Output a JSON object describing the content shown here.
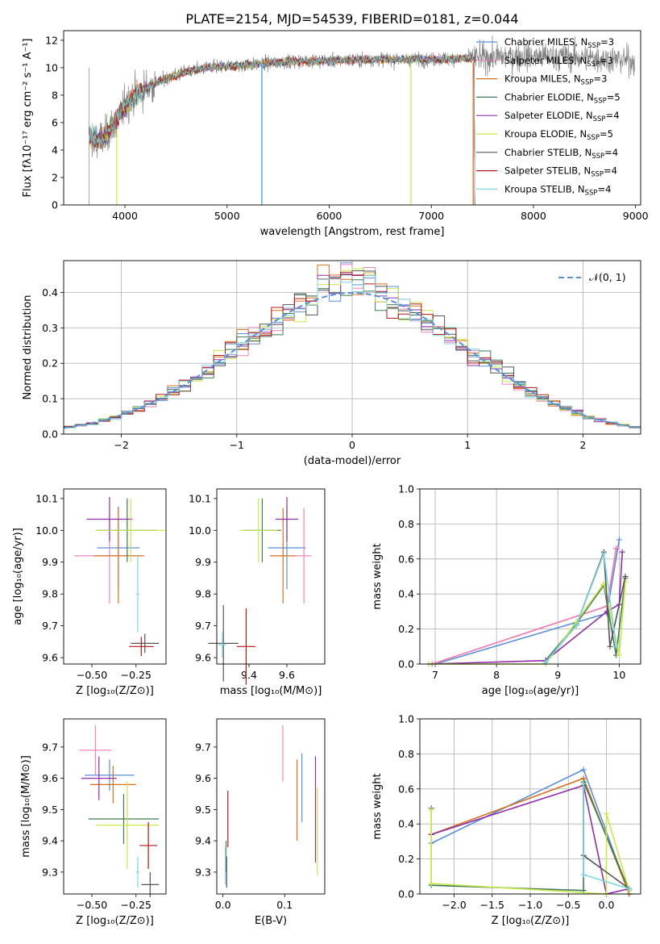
{
  "figure_title": "PLATE=2154, MJD=54539, FIBERID=0181, z=0.044",
  "colors": {
    "chabrier_miles": "#5b8ed6",
    "salpeter_miles": "#f082c0",
    "kroupa_miles": "#d6701e",
    "chabrier_elodie": "#3f7a55",
    "salpeter_elodie": "#8f2fa8",
    "kroupa_elodie": "#c8e84a",
    "chabrier_stelib": "#555555",
    "salpeter_stelib": "#b01818",
    "kroupa_stelib": "#7fd6dc",
    "data_gray": "#808080",
    "normal": "#5b8ed6"
  },
  "chart_data": [
    {
      "id": "spectrum",
      "type": "line",
      "xlabel": "wavelength [Angstrom, rest frame]",
      "ylabel": "Flux [fλ10⁻¹⁷ erg cm⁻² s⁻¹ A⁻¹]",
      "xlim": [
        3400,
        9050
      ],
      "ylim": [
        0,
        12.7
      ],
      "xticks": [
        4000,
        5000,
        6000,
        7000,
        8000,
        9000
      ],
      "yticks": [
        0,
        2,
        4,
        6,
        8,
        10,
        12
      ],
      "grid": false,
      "legend_placement": "top-right",
      "legend": [
        {
          "label": "Chabrier MILES, N",
          "sub": "SSP",
          "suffix": "=3",
          "color": "#5b8ed6"
        },
        {
          "label": "Salpeter MILES, N",
          "sub": "SSP",
          "suffix": "=3",
          "color": "#f082c0"
        },
        {
          "label": "Kroupa MILES, N",
          "sub": "SSP",
          "suffix": "=3",
          "color": "#d6701e"
        },
        {
          "label": "Chabrier ELODIE, N",
          "sub": "SSP",
          "suffix": "=5",
          "color": "#3f7a55"
        },
        {
          "label": "Salpeter ELODIE, N",
          "sub": "SSP",
          "suffix": "=4",
          "color": "#8f2fa8"
        },
        {
          "label": "Kroupa ELODIE, N",
          "sub": "SSP",
          "suffix": "=5",
          "color": "#c8e84a"
        },
        {
          "label": "Chabrier STELIB, N",
          "sub": "SSP",
          "suffix": "=4",
          "color": "#555555"
        },
        {
          "label": "Salpeter STELIB, N",
          "sub": "SSP",
          "suffix": "=4",
          "color": "#b01818"
        },
        {
          "label": "Kroupa STELIB, N",
          "sub": "SSP",
          "suffix": "=4",
          "color": "#7fd6dc"
        }
      ],
      "continuum": {
        "x": [
          3650,
          3700,
          3800,
          3900,
          4000,
          4100,
          4200,
          4400,
          4600,
          4800,
          5000,
          5200,
          5500,
          5800,
          6000,
          6300,
          6600,
          7000,
          7400,
          7800,
          8200,
          8600,
          9000
        ],
        "y": [
          5.0,
          4.7,
          4.9,
          6.0,
          7.2,
          8.0,
          8.5,
          9.2,
          9.7,
          10.0,
          10.1,
          10.2,
          10.4,
          10.5,
          10.5,
          10.6,
          10.6,
          10.6,
          10.7,
          10.8,
          10.8,
          10.7,
          10.5
        ]
      },
      "model_range": [
        3650,
        7420
      ],
      "data_range": [
        3650,
        8990
      ]
    },
    {
      "id": "residuals",
      "type": "step",
      "xlabel": "(data-model)/error",
      "ylabel": "Normed distribution",
      "xlim": [
        -2.5,
        2.5
      ],
      "ylim": [
        0,
        0.49
      ],
      "xticks": [
        -2,
        -1,
        0,
        1,
        2
      ],
      "yticks": [
        0.0,
        0.1,
        0.2,
        0.3,
        0.4
      ],
      "grid": true,
      "legend_placement": "top-right",
      "legend": [
        {
          "label": "𝒩(0, 1)",
          "color": "#5b8ed6",
          "style": "dashed"
        }
      ],
      "bin_width": 0.1
    },
    {
      "id": "age-vs-Z",
      "type": "errorbar",
      "xlabel": "Z [log₁₀(Z/Z⊙)]",
      "ylabel": "age  [log₁₀(age/yr)]",
      "xlim": [
        -0.66,
        -0.08
      ],
      "ylim": [
        9.58,
        10.13
      ],
      "xticks": [
        -0.5,
        -0.25
      ],
      "yticks": [
        9.6,
        9.7,
        9.8,
        9.9,
        10.0,
        10.1
      ],
      "points": [
        {
          "color": "#5b8ed6",
          "x": -0.35,
          "xerr": 0.12,
          "y": 9.945,
          "yerr": 0.13
        },
        {
          "color": "#f082c0",
          "x": -0.4,
          "xerr": 0.2,
          "y": 9.92,
          "yerr": 0.15
        },
        {
          "color": "#d6701e",
          "x": -0.35,
          "xerr": 0.14,
          "y": 9.92,
          "yerr": 0.15
        },
        {
          "color": "#3f7a55",
          "x": -0.3,
          "xerr": 0.17,
          "y": 10.0,
          "yerr": 0.1
        },
        {
          "color": "#8f2fa8",
          "x": -0.4,
          "xerr": 0.13,
          "y": 10.035,
          "yerr": 0.07
        },
        {
          "color": "#c8e84a",
          "x": -0.28,
          "xerr": 0.2,
          "y": 10.0,
          "yerr": 0.1
        },
        {
          "color": "#555555",
          "x": -0.2,
          "xerr": 0.08,
          "y": 9.645,
          "yerr": 0.03
        },
        {
          "color": "#b01818",
          "x": -0.22,
          "xerr": 0.07,
          "y": 9.635,
          "yerr": 0.03
        },
        {
          "color": "#7fd6dc",
          "x": -0.24,
          "xerr": 0.01,
          "y": 9.8,
          "yerr": 0.12
        }
      ]
    },
    {
      "id": "age-vs-mass",
      "type": "errorbar",
      "xlabel": "mass [log₁₀(M/M⊙)]",
      "ylabel": "",
      "xlim": [
        9.23,
        9.8
      ],
      "ylim": [
        9.58,
        10.13
      ],
      "xticks": [
        9.4,
        9.6
      ],
      "yticks": [
        9.6,
        9.7,
        9.8,
        9.9,
        10.0,
        10.1
      ],
      "points": [
        {
          "color": "#5b8ed6",
          "x": 9.6,
          "xerr": 0.1,
          "y": 9.945,
          "yerr": 0.13
        },
        {
          "color": "#f082c0",
          "x": 9.69,
          "xerr": 0.04,
          "y": 9.92,
          "yerr": 0.15
        },
        {
          "color": "#d6701e",
          "x": 9.58,
          "xerr": 0.07,
          "y": 9.92,
          "yerr": 0.15
        },
        {
          "color": "#3f7a55",
          "x": 9.47,
          "xerr": 0.1,
          "y": 10.0,
          "yerr": 0.1
        },
        {
          "color": "#8f2fa8",
          "x": 9.6,
          "xerr": 0.06,
          "y": 10.035,
          "yerr": 0.07
        },
        {
          "color": "#c8e84a",
          "x": 9.45,
          "xerr": 0.1,
          "y": 10.0,
          "yerr": 0.1
        },
        {
          "color": "#555555",
          "x": 9.265,
          "xerr": 0.08,
          "y": 9.645,
          "yerr": 0.12
        },
        {
          "color": "#b01818",
          "x": 9.385,
          "xerr": 0.05,
          "y": 9.635,
          "yerr": 0.12
        },
        {
          "color": "#7fd6dc",
          "x": 9.26,
          "xerr": 0.02,
          "y": 9.64,
          "yerr": 0.04
        }
      ]
    },
    {
      "id": "mass-weight-vs-age",
      "type": "line",
      "xlabel": "age  [log₁₀(age/yr)]",
      "ylabel": "mass weight",
      "xlim": [
        6.75,
        10.35
      ],
      "ylim": [
        0,
        1
      ],
      "xticks": [
        7,
        8,
        9,
        10
      ],
      "yticks": [
        0.0,
        0.2,
        0.4,
        0.6,
        0.8,
        1.0
      ],
      "grid": true,
      "series": [
        {
          "color": "#5b8ed6",
          "x": [
            7.0,
            9.8,
            10.0
          ],
          "y": [
            0.0,
            0.29,
            0.71
          ]
        },
        {
          "color": "#d6701e",
          "x": [
            6.95,
            9.8,
            9.95
          ],
          "y": [
            0.0,
            0.33,
            0.66
          ]
        },
        {
          "color": "#f082c0",
          "x": [
            6.95,
            9.8,
            9.95
          ],
          "y": [
            0.0,
            0.33,
            0.66
          ]
        },
        {
          "color": "#3f7a55",
          "x": [
            8.8,
            9.3,
            9.75,
            9.95,
            10.1
          ],
          "y": [
            0.02,
            0.23,
            0.45,
            0.05,
            0.49
          ]
        },
        {
          "color": "#8f2fa8",
          "x": [
            6.9,
            8.8,
            9.8,
            10.0,
            10.05
          ],
          "y": [
            0.0,
            0.02,
            0.3,
            0.34,
            0.64
          ]
        },
        {
          "color": "#c8e84a",
          "x": [
            6.9,
            8.8,
            9.3,
            9.75,
            10.0,
            10.1
          ],
          "y": [
            0.0,
            0.0,
            0.24,
            0.46,
            0.05,
            0.47
          ]
        },
        {
          "color": "#555555",
          "x": [
            8.8,
            9.3,
            9.75,
            9.85,
            10.1
          ],
          "y": [
            0.01,
            0.22,
            0.64,
            0.1,
            0.5
          ]
        },
        {
          "color": "#7fd6dc",
          "x": [
            8.8,
            9.3,
            9.75,
            9.95
          ],
          "y": [
            0.01,
            0.22,
            0.63,
            0.1
          ]
        }
      ]
    },
    {
      "id": "mass-vs-Z",
      "type": "errorbar",
      "xlabel": "Z [log₁₀(Z/Z⊙)]",
      "ylabel": "mass [log₁₀(M/M⊙)]",
      "xlim": [
        -0.66,
        -0.08
      ],
      "ylim": [
        9.23,
        9.79
      ],
      "xticks": [
        -0.5,
        -0.25
      ],
      "yticks": [
        9.3,
        9.4,
        9.5,
        9.6,
        9.7
      ],
      "points": [
        {
          "color": "#5b8ed6",
          "x": -0.4,
          "xerr": 0.14,
          "y": 9.61,
          "yerr": 0.05
        },
        {
          "color": "#f082c0",
          "x": -0.48,
          "xerr": 0.09,
          "y": 9.69,
          "yerr": 0.08
        },
        {
          "color": "#d6701e",
          "x": -0.38,
          "xerr": 0.13,
          "y": 9.58,
          "yerr": 0.06
        },
        {
          "color": "#3f7a55",
          "x": -0.32,
          "xerr": 0.2,
          "y": 9.47,
          "yerr": 0.08
        },
        {
          "color": "#8f2fa8",
          "x": -0.46,
          "xerr": 0.1,
          "y": 9.6,
          "yerr": 0.07
        },
        {
          "color": "#c8e84a",
          "x": -0.3,
          "xerr": 0.18,
          "y": 9.45,
          "yerr": 0.14
        },
        {
          "color": "#555555",
          "x": -0.17,
          "xerr": 0.05,
          "y": 9.26,
          "yerr": 0.04
        },
        {
          "color": "#b01818",
          "x": -0.18,
          "xerr": 0.05,
          "y": 9.385,
          "yerr": 0.075
        },
        {
          "color": "#7fd6dc",
          "x": -0.24,
          "xerr": 0.01,
          "y": 9.3,
          "yerr": 0.05
        }
      ]
    },
    {
      "id": "mass-vs-ebv",
      "type": "errorbar",
      "xlabel": "E(B-V)",
      "ylabel": "",
      "xlim": [
        -0.01,
        0.165
      ],
      "ylim": [
        9.23,
        9.79
      ],
      "xticks": [
        0.0,
        0.1
      ],
      "yticks": [
        9.3,
        9.4,
        9.5,
        9.6,
        9.7
      ],
      "points": [
        {
          "color": "#5b8ed6",
          "x": 0.128,
          "xerr": 0,
          "y": 9.57,
          "yerr": 0.11
        },
        {
          "color": "#f082c0",
          "x": 0.097,
          "xerr": 0,
          "y": 9.68,
          "yerr": 0.09
        },
        {
          "color": "#d6701e",
          "x": 0.12,
          "xerr": 0,
          "y": 9.53,
          "yerr": 0.13
        },
        {
          "color": "#3f7a55",
          "x": 0.005,
          "xerr": 0,
          "y": 9.35,
          "yerr": 0.05
        },
        {
          "color": "#8f2fa8",
          "x": 0.15,
          "xerr": 0,
          "y": 9.5,
          "yerr": 0.17
        },
        {
          "color": "#c8e84a",
          "x": 0.153,
          "xerr": 0,
          "y": 9.43,
          "yerr": 0.14
        },
        {
          "color": "#555555",
          "x": 0.006,
          "xerr": 0,
          "y": 9.3,
          "yerr": 0.05
        },
        {
          "color": "#b01818",
          "x": 0.008,
          "xerr": 0,
          "y": 9.47,
          "yerr": 0.09
        },
        {
          "color": "#7fd6dc",
          "x": 0.004,
          "xerr": 0,
          "y": 9.32,
          "yerr": 0.06
        }
      ]
    },
    {
      "id": "mass-weight-vs-Z",
      "type": "line",
      "xlabel": "Z [log₁₀(Z/Z⊙)]",
      "ylabel": "mass weight",
      "xlim": [
        -2.45,
        0.45
      ],
      "ylim": [
        0,
        1
      ],
      "xticks": [
        -2.0,
        -1.5,
        -1.0,
        -0.5,
        0.0
      ],
      "yticks": [
        0.0,
        0.2,
        0.4,
        0.6,
        0.8,
        1.0
      ],
      "grid": true,
      "series": [
        {
          "color": "#5b8ed6",
          "x": [
            -2.3,
            -0.3,
            0.3
          ],
          "y": [
            0.29,
            0.71,
            0.0
          ]
        },
        {
          "color": "#d6701e",
          "x": [
            -2.3,
            -0.3,
            0.3
          ],
          "y": [
            0.34,
            0.66,
            0.0
          ]
        },
        {
          "color": "#8f2fa8",
          "x": [
            -2.3,
            -0.3,
            0.0,
            0.3
          ],
          "y": [
            0.34,
            0.62,
            0.0,
            0.03
          ]
        },
        {
          "color": "#3f7a55",
          "x": [
            -2.3,
            -2.3,
            -0.3,
            -0.3,
            0.3
          ],
          "y": [
            0.49,
            0.05,
            0.02,
            0.64,
            0.02
          ]
        },
        {
          "color": "#c8e84a",
          "x": [
            -2.3,
            -2.3,
            0.0,
            0.0,
            0.3
          ],
          "y": [
            0.48,
            0.06,
            0.0,
            0.46,
            0.02
          ]
        },
        {
          "color": "#555555",
          "x": [
            -0.3,
            -0.3,
            0.3
          ],
          "y": [
            0.62,
            0.22,
            0.03
          ]
        },
        {
          "color": "#7fd6dc",
          "x": [
            -0.3,
            -0.3,
            0.3
          ],
          "y": [
            0.63,
            0.11,
            0.03
          ]
        }
      ]
    }
  ]
}
